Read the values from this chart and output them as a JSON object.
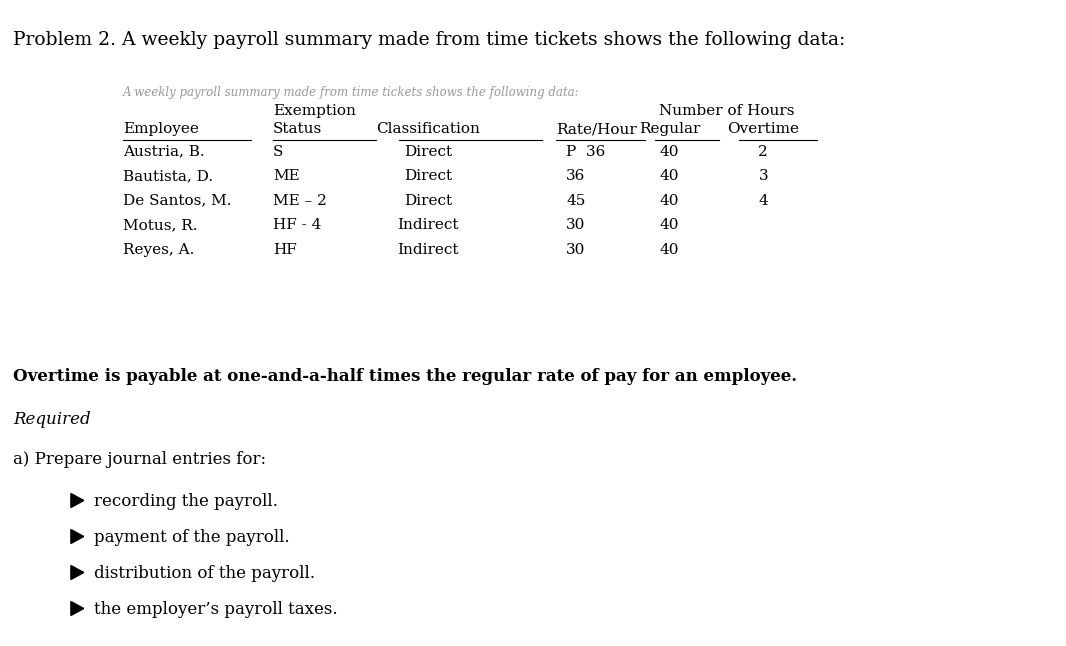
{
  "title": "Problem 2. A weekly payroll summary made from time tickets shows the following data:",
  "table_faded_line": "A weekly payroll summary made from time tickets shows the following data:",
  "col_headers": {
    "employee": "Employee",
    "exemption_top": "Exemption",
    "exemption_bot": "Status",
    "classification": "Classification",
    "rate_hour": "Rate/Hour",
    "number_of_hours": "Number of Hours",
    "regular": "Regular",
    "overtime": "Overtime"
  },
  "employees": [
    {
      "name": "Austria, B.",
      "exemption": "S",
      "classification": "Direct",
      "rate": "P  36",
      "regular": "40",
      "overtime": "2"
    },
    {
      "name": "Bautista, D.",
      "exemption": "ME",
      "classification": "Direct",
      "rate": "36",
      "regular": "40",
      "overtime": "3"
    },
    {
      "name": "De Santos, M.",
      "exemption": "ME – 2",
      "classification": "Direct",
      "rate": "45",
      "regular": "40",
      "overtime": "4"
    },
    {
      "name": "Motus, R.",
      "exemption": "HF - 4",
      "classification": "Indirect",
      "rate": "30",
      "regular": "40",
      "overtime": ""
    },
    {
      "name": "Reyes, A.",
      "exemption": "HF",
      "classification": "Indirect",
      "rate": "30",
      "regular": "40",
      "overtime": ""
    }
  ],
  "overtime_note": "Overtime is payable at one-and-a-half times the regular rate of pay for an employee.",
  "required_label": "Required",
  "a_label": "a) Prepare journal entries for:",
  "items": [
    "recording the payroll.",
    "payment of the payroll.",
    "distribution of the payroll.",
    "the employer’s payroll taxes."
  ],
  "bg_color": "#ffffff",
  "text_color": "#000000",
  "font_size_title": 13.5,
  "font_size_body": 12,
  "font_size_table": 11,
  "font_size_faded": 8.5
}
